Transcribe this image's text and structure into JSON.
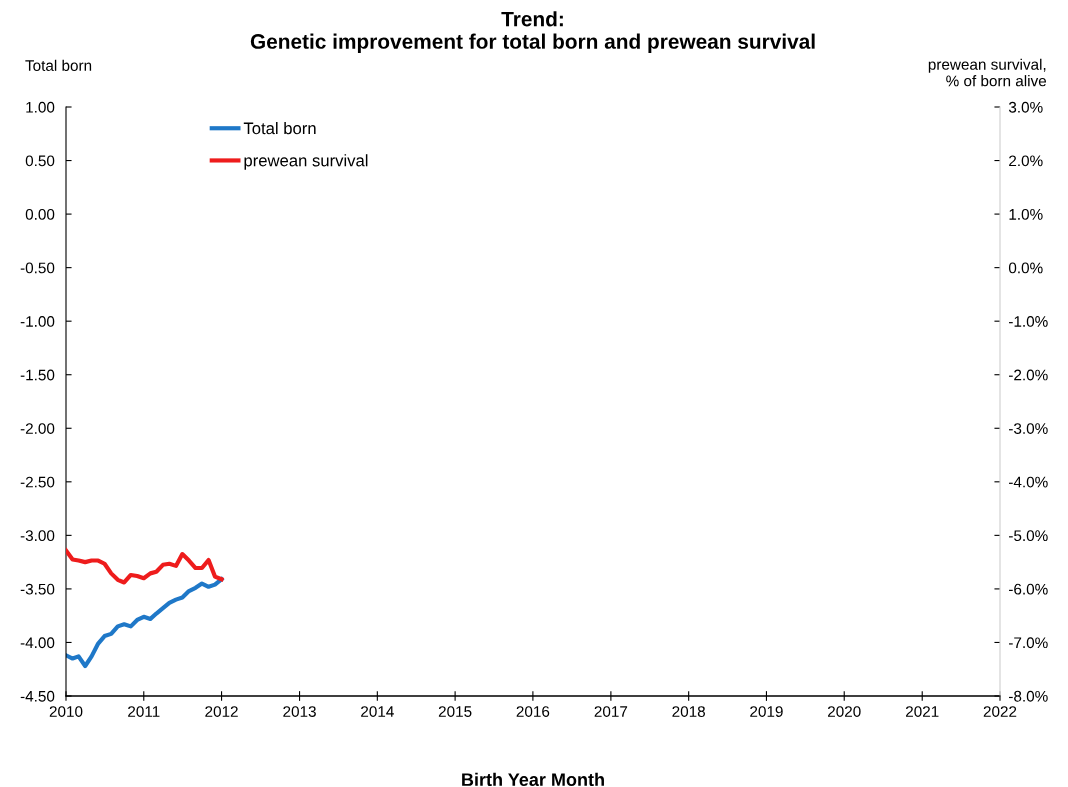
{
  "chart_data": {
    "type": "line",
    "title": "Trend:\nGenetic improvement for total born and prewean survival",
    "xlabel": "Birth Year Month",
    "ylabel": "Total born",
    "y2label": "prewean survival,\n% of born alive",
    "x": [
      "2010-01",
      "2010-02",
      "2010-03",
      "2010-04",
      "2010-05",
      "2010-06",
      "2010-07",
      "2010-08",
      "2010-09",
      "2010-10",
      "2010-11",
      "2010-12",
      "2011-01",
      "2011-02",
      "2011-03",
      "2011-04",
      "2011-05",
      "2011-06",
      "2011-07",
      "2011-08",
      "2011-09",
      "2011-10",
      "2011-11",
      "2011-12",
      "2012-01"
    ],
    "series": [
      {
        "name": "Total born",
        "color": "#1f78c8",
        "values": [
          -4.12,
          -4.15,
          -4.13,
          -4.22,
          -4.13,
          -4.01,
          -3.94,
          -3.92,
          -3.85,
          -3.83,
          -3.85,
          -3.79,
          -3.76,
          -3.78,
          -3.73,
          -3.68,
          -3.63,
          -3.6,
          -3.58,
          -3.52,
          -3.49,
          -3.45,
          -3.48,
          -3.46,
          -3.41
        ]
      },
      {
        "name": "prewean survival",
        "color": "#ee1c1c",
        "axis": "y2",
        "values": [
          -5.28,
          -5.45,
          -5.47,
          -5.5,
          -5.47,
          -5.47,
          -5.53,
          -5.71,
          -5.83,
          -5.88,
          -5.74,
          -5.76,
          -5.8,
          -5.71,
          -5.68,
          -5.55,
          -5.53,
          -5.57,
          -5.35,
          -5.47,
          -5.61,
          -5.61,
          -5.46,
          -5.77,
          -5.82
        ]
      }
    ],
    "xlim": [
      "2010-01",
      "2022-01"
    ],
    "xticks": [
      {
        "value": "2010-01",
        "label": "2010"
      },
      {
        "value": "2011-01",
        "label": "2011"
      },
      {
        "value": "2012-01",
        "label": "2012"
      },
      {
        "value": "2013-01",
        "label": "2013"
      },
      {
        "value": "2014-01",
        "label": "2014"
      },
      {
        "value": "2015-01",
        "label": "2015"
      },
      {
        "value": "2016-01",
        "label": "2016"
      },
      {
        "value": "2017-01",
        "label": "2017"
      },
      {
        "value": "2018-01",
        "label": "2018"
      },
      {
        "value": "2019-01",
        "label": "2019"
      },
      {
        "value": "2020-01",
        "label": "2020"
      },
      {
        "value": "2021-01",
        "label": "2021"
      },
      {
        "value": "2022-01",
        "label": "2022"
      }
    ],
    "ylim": [
      -4.5,
      1.0
    ],
    "yticks": [
      {
        "value": 1.0,
        "label": "1.00"
      },
      {
        "value": 0.5,
        "label": "0.50"
      },
      {
        "value": 0.0,
        "label": "0.00"
      },
      {
        "value": -0.5,
        "label": "-0.50"
      },
      {
        "value": -1.0,
        "label": "-1.00"
      },
      {
        "value": -1.5,
        "label": "-1.50"
      },
      {
        "value": -2.0,
        "label": "-2.00"
      },
      {
        "value": -2.5,
        "label": "-2.50"
      },
      {
        "value": -3.0,
        "label": "-3.00"
      },
      {
        "value": -3.5,
        "label": "-3.50"
      },
      {
        "value": -4.0,
        "label": "-4.00"
      },
      {
        "value": -4.5,
        "label": "-4.50"
      }
    ],
    "y2lim": [
      -8.0,
      3.0
    ],
    "y2ticks": [
      {
        "value": 3,
        "label": "3.0%"
      },
      {
        "value": 2,
        "label": "2.0%"
      },
      {
        "value": 1,
        "label": "1.0%"
      },
      {
        "value": 0,
        "label": "0.0%"
      },
      {
        "value": -1,
        "label": "-1.0%"
      },
      {
        "value": -2,
        "label": "-2.0%"
      },
      {
        "value": -3,
        "label": "-3.0%"
      },
      {
        "value": -4,
        "label": "-4.0%"
      },
      {
        "value": -5,
        "label": "-5.0%"
      },
      {
        "value": -6,
        "label": "-6.0%"
      },
      {
        "value": -7,
        "label": "-7.0%"
      },
      {
        "value": -8,
        "label": "-8.0%"
      }
    ],
    "grid": false,
    "legend": "top left",
    "marker": "none",
    "line_style": "solid"
  }
}
